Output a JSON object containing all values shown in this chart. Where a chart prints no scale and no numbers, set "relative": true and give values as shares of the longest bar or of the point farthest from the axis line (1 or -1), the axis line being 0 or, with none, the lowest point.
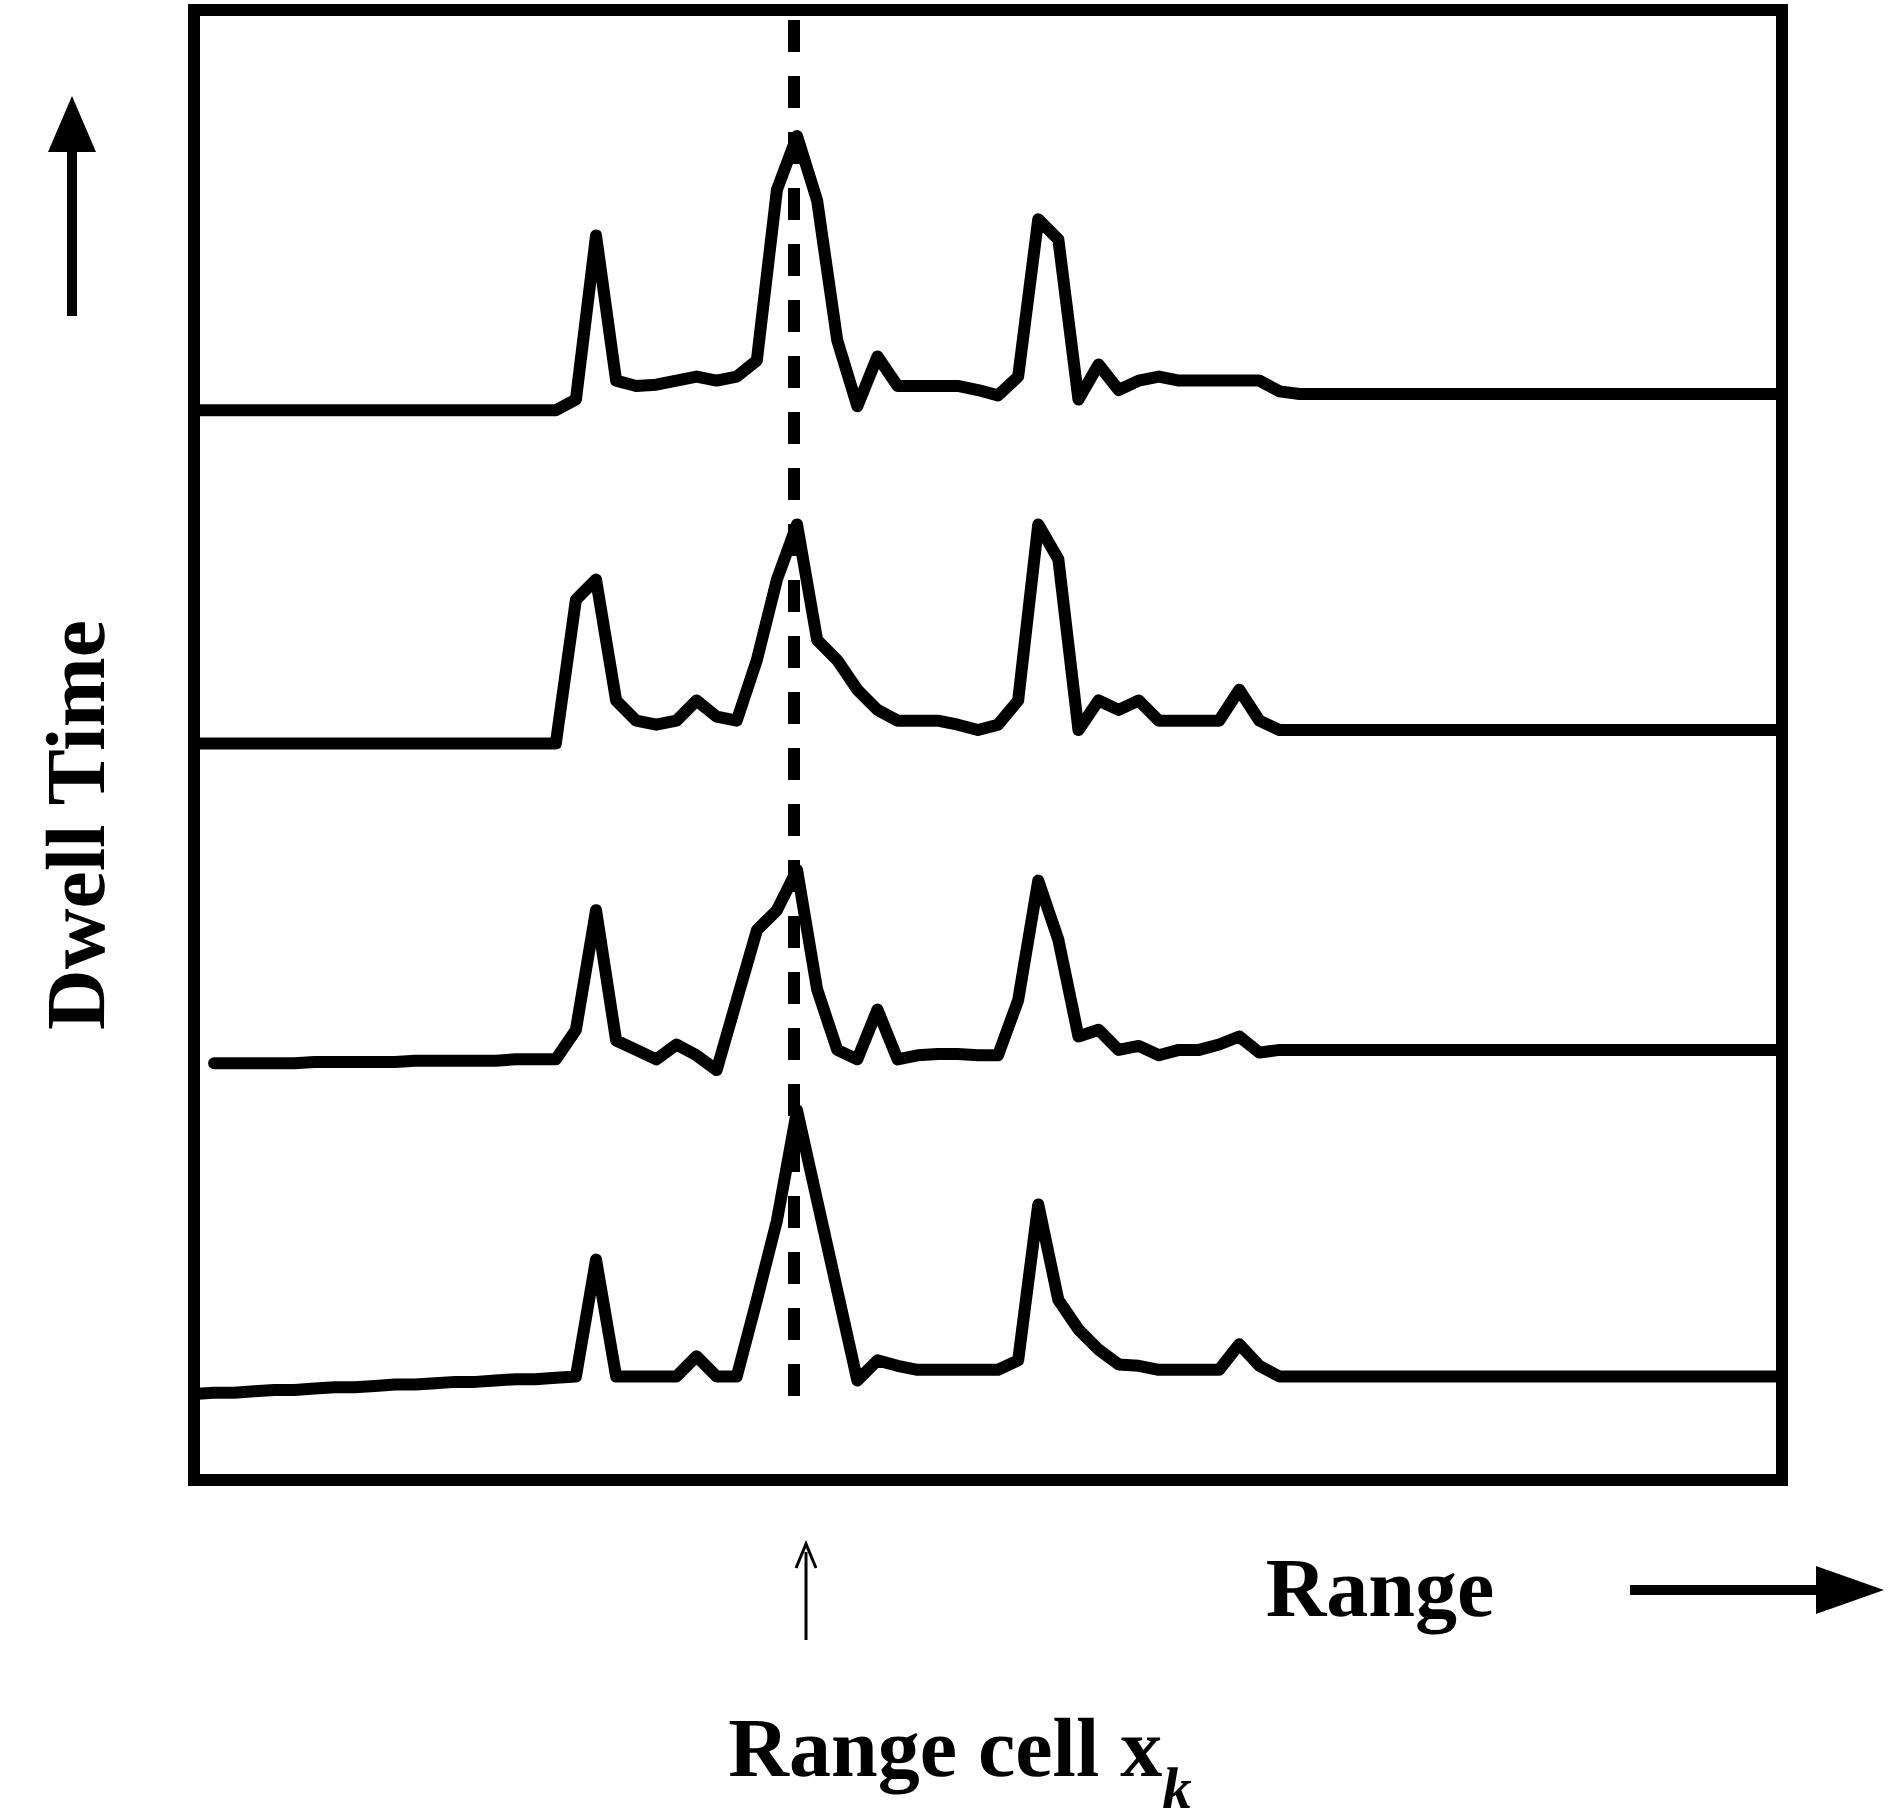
{
  "chart_data": {
    "type": "line",
    "relative": true,
    "xlabel": "Range",
    "ylabel": "Dwell Time",
    "annotations": [
      "Range cell x$_{k}$"
    ],
    "categories": [
      null,
      null,
      null,
      null,
      null,
      null,
      null,
      null,
      null,
      null,
      null,
      null,
      null,
      null,
      null,
      null,
      null,
      null,
      null,
      null,
      null,
      null,
      null,
      null,
      null,
      null,
      null,
      null,
      null,
      null,
      null,
      null,
      null,
      null,
      null,
      null,
      null,
      null,
      null,
      null,
      null,
      null,
      null,
      null,
      null,
      null,
      null,
      null,
      null,
      null,
      null,
      null,
      null,
      null,
      null,
      null,
      null,
      null,
      null,
      null,
      null,
      null,
      null,
      null,
      null,
      null,
      null,
      null,
      null,
      null,
      null,
      null,
      null,
      null,
      null,
      null,
      null,
      null,
      null,
      null
    ],
    "series": [
      {
        "color": "#000000",
        "values": [
          0.796,
          0.796,
          0.796,
          0.796,
          0.796,
          0.796,
          0.796,
          0.796,
          0.796,
          0.796,
          0.796,
          0.796,
          0.796,
          0.796,
          0.796,
          0.796,
          0.796,
          0.796,
          0.796,
          0.804,
          0.926,
          0.818,
          0.814,
          0.815,
          0.818,
          0.821,
          0.818,
          0.821,
          0.833,
          0.96,
          1,
          0.952,
          0.848,
          0.799,
          0.836,
          0.814,
          0.814,
          0.814,
          0.814,
          0.811,
          0.807,
          0.821,
          0.938,
          0.923,
          0.804,
          0.83,
          0.811,
          0.818,
          0.821,
          0.818,
          0.818,
          0.818,
          0.818,
          0.818,
          0.81,
          0.808,
          0.808,
          0.808,
          0.808,
          0.808,
          0.808,
          0.808,
          0.808,
          0.808,
          0.808,
          0.808,
          0.808,
          0.808,
          0.808,
          0.808,
          0.808,
          0.808,
          0.808,
          0.808,
          0.808,
          0.808,
          0.808,
          0.808,
          0.808,
          0.808
        ]
      },
      {
        "color": "#000000",
        "values": [
          0.548,
          0.548,
          0.548,
          0.548,
          0.548,
          0.548,
          0.548,
          0.548,
          0.548,
          0.548,
          0.548,
          0.548,
          0.548,
          0.548,
          0.548,
          0.548,
          0.548,
          0.548,
          0.548,
          0.655,
          0.67,
          0.58,
          0.565,
          0.562,
          0.565,
          0.58,
          0.568,
          0.565,
          0.61,
          0.67,
          0.711,
          0.625,
          0.61,
          0.588,
          0.573,
          0.565,
          0.565,
          0.565,
          0.562,
          0.558,
          0.562,
          0.58,
          0.711,
          0.685,
          0.558,
          0.58,
          0.573,
          0.58,
          0.565,
          0.565,
          0.565,
          0.565,
          0.588,
          0.565,
          0.558,
          0.558,
          0.558,
          0.558,
          0.558,
          0.558,
          0.558,
          0.558,
          0.558,
          0.558,
          0.558,
          0.558,
          0.558,
          0.558,
          0.558,
          0.558,
          0.558,
          0.558,
          0.558,
          0.558,
          0.558,
          0.558,
          0.558,
          0.558,
          0.558,
          0.558
        ]
      },
      {
        "color": "#000000",
        "values": [
          null,
          0.31,
          0.31,
          0.31,
          0.31,
          0.31,
          0.311,
          0.311,
          0.311,
          0.311,
          0.311,
          0.312,
          0.312,
          0.312,
          0.312,
          0.312,
          0.313,
          0.313,
          0.313,
          0.335,
          0.424,
          0.327,
          0.32,
          0.313,
          0.324,
          0.316,
          0.305,
          0.357,
          0.409,
          0.424,
          0.454,
          0.365,
          0.32,
          0.313,
          0.35,
          0.313,
          0.316,
          0.317,
          0.317,
          0.316,
          0.316,
          0.357,
          0.446,
          0.402,
          0.33,
          0.335,
          0.32,
          0.323,
          0.316,
          0.32,
          0.32,
          0.324,
          0.33,
          0.318,
          0.32,
          0.32,
          0.32,
          0.32,
          0.32,
          0.32,
          0.32,
          0.32,
          0.32,
          0.32,
          0.32,
          0.32,
          0.32,
          0.32,
          0.32,
          0.32,
          0.32,
          0.32,
          0.32,
          0.32,
          0.32,
          0.32,
          0.32,
          0.32,
          0.32,
          0.32
        ]
      },
      {
        "color": "#000000",
        "values": [
          0.064,
          0.065,
          0.065,
          0.066,
          0.067,
          0.067,
          0.068,
          0.069,
          0.069,
          0.07,
          0.071,
          0.071,
          0.072,
          0.073,
          0.073,
          0.074,
          0.075,
          0.075,
          0.076,
          0.077,
          0.164,
          0.077,
          0.077,
          0.077,
          0.077,
          0.092,
          0.077,
          0.077,
          0.134,
          0.193,
          0.275,
          0.208,
          0.141,
          0.074,
          0.089,
          0.085,
          0.082,
          0.082,
          0.082,
          0.082,
          0.082,
          0.089,
          0.205,
          0.134,
          0.112,
          0.097,
          0.086,
          0.085,
          0.082,
          0.082,
          0.082,
          0.082,
          0.101,
          0.085,
          0.077,
          0.077,
          0.077,
          0.077,
          0.077,
          0.077,
          0.077,
          0.077,
          0.077,
          0.077,
          0.077,
          0.077,
          0.077,
          0.077,
          0.077,
          0.077,
          0.077,
          0.077,
          0.077,
          0.077,
          0.077,
          0.077,
          0.077,
          0.077,
          0.077,
          0.077
        ]
      }
    ]
  }
}
